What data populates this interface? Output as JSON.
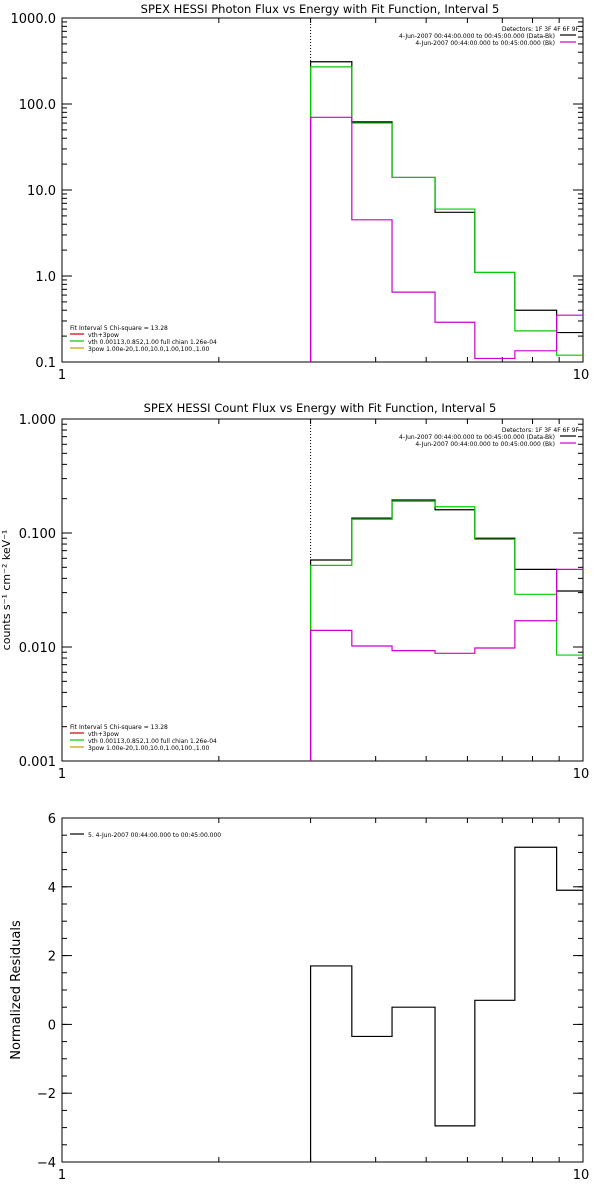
{
  "chart_data": [
    {
      "id": "photon",
      "type": "line",
      "title": "SPEX HESSI Photon Flux vs Energy with Fit Function, Interval 5",
      "xscale": "log",
      "yscale": "log",
      "xlim": [
        1,
        10
      ],
      "ylim": [
        0.1,
        1000
      ],
      "xticks": [
        {
          "v": 1,
          "label": "1"
        },
        {
          "v": 10,
          "label": "10"
        }
      ],
      "yticks": [
        {
          "v": 0.1,
          "label": "0.1"
        },
        {
          "v": 1,
          "label": "1.0"
        },
        {
          "v": 10,
          "label": "10.0"
        },
        {
          "v": 100,
          "label": "100.0"
        },
        {
          "v": 1000,
          "label": "1000.0"
        }
      ],
      "vline": 3,
      "legend_top_right": [
        {
          "text": "Detectors: 1F 3F 4F 6F 9F",
          "color": null
        },
        {
          "text": "4-Jun-2007 00:44:00.000 to 00:45:00.000 (Data-Bk)",
          "color": "#000000"
        },
        {
          "text": "4-Jun-2007 00:44:00.000 to 00:45:00.000 (Bk)",
          "color": "#cc00cc"
        }
      ],
      "legend_bottom_left": [
        {
          "text": "Fit Interval  5   Chi-square = 13.28",
          "color": null
        },
        {
          "text": "vth+3pow",
          "color": "#cc0000"
        },
        {
          "text": "vth 0.00113,0.852,1.00   full chian 1.26e-04",
          "color": "#00cc00"
        },
        {
          "text": "3pow 1.00e-20,1.00,10.0,1.00,100.,1.00",
          "color": "#cc9900"
        }
      ],
      "edges": [
        3,
        3.6,
        4.3,
        5.2,
        6.2,
        7.4,
        8.9,
        10
      ],
      "series": [
        {
          "color": "#000000",
          "values": [
            310,
            62,
            14,
            5.5,
            1.1,
            0.4,
            0.22
          ]
        },
        {
          "color": "#00cc00",
          "values": [
            270,
            60,
            14,
            6,
            1.1,
            0.23,
            0.12
          ]
        },
        {
          "color": "#cc00cc",
          "values": [
            70,
            4.5,
            0.65,
            0.29,
            0.11,
            0.135,
            0.35
          ]
        }
      ]
    },
    {
      "id": "count",
      "type": "line",
      "title": "SPEX HESSI Count Flux vs Energy with Fit Function, Interval 5",
      "ylabel": "counts s⁻¹ cm⁻² keV⁻¹",
      "xscale": "log",
      "yscale": "log",
      "xlim": [
        1,
        10
      ],
      "ylim": [
        0.001,
        1
      ],
      "xticks": [
        {
          "v": 1,
          "label": "1"
        },
        {
          "v": 10,
          "label": "10"
        }
      ],
      "yticks": [
        {
          "v": 0.001,
          "label": "0.001"
        },
        {
          "v": 0.01,
          "label": "0.010"
        },
        {
          "v": 0.1,
          "label": "0.100"
        },
        {
          "v": 1,
          "label": "1.000"
        }
      ],
      "vline": 3,
      "legend_top_right": [
        {
          "text": "Detectors: 1F 3F 4F 6F 9F",
          "color": null
        },
        {
          "text": "4-Jun-2007 00:44:00.000 to 00:45:00.000 (Data-Bk)",
          "color": "#000000"
        },
        {
          "text": "4-Jun-2007 00:44:00.000 to 00:45:00.000 (Bk)",
          "color": "#cc00cc"
        }
      ],
      "legend_bottom_left": [
        {
          "text": "Fit Interval  5   Chi-square = 13.28",
          "color": null
        },
        {
          "text": "vth+3pow",
          "color": "#cc0000"
        },
        {
          "text": "vth 0.00113,0.852,1.00   full chian 1.26e-04",
          "color": "#00cc00"
        },
        {
          "text": "3pow 1.00e-20,1.00,10.0,1.00,100.,1.00",
          "color": "#cc9900"
        }
      ],
      "edges": [
        3,
        3.6,
        4.3,
        5.2,
        6.2,
        7.4,
        8.9,
        10
      ],
      "series": [
        {
          "color": "#000000",
          "values": [
            0.058,
            0.135,
            0.195,
            0.16,
            0.09,
            0.048,
            0.031
          ]
        },
        {
          "color": "#00cc00",
          "values": [
            0.052,
            0.132,
            0.19,
            0.17,
            0.088,
            0.029,
            0.0085
          ]
        },
        {
          "color": "#cc00cc",
          "values": [
            0.014,
            0.0102,
            0.0093,
            0.0088,
            0.0098,
            0.017,
            0.048
          ]
        }
      ]
    },
    {
      "id": "resid",
      "type": "line",
      "title": "",
      "ylabel": "Normalized Residuals",
      "xscale": "log",
      "yscale": "linear",
      "xlim": [
        1,
        10
      ],
      "ylim": [
        -4,
        6
      ],
      "xticks": [
        {
          "v": 1,
          "label": "1"
        },
        {
          "v": 10,
          "label": "10"
        }
      ],
      "yticks": [
        {
          "v": -4,
          "label": "−4"
        },
        {
          "v": -2,
          "label": "−2"
        },
        {
          "v": 0,
          "label": "0"
        },
        {
          "v": 2,
          "label": "2"
        },
        {
          "v": 4,
          "label": "4"
        },
        {
          "v": 6,
          "label": "6"
        }
      ],
      "vline": null,
      "legend_top_left": [
        {
          "text": "5. 4-Jun-2007 00:44:00.000 to 00:45:00.000",
          "color": "#000000"
        }
      ],
      "edges": [
        3,
        3.6,
        4.3,
        5.2,
        6.2,
        7.4,
        8.9,
        10
      ],
      "series": [
        {
          "color": "#000000",
          "values": [
            1.7,
            -0.35,
            0.5,
            -2.95,
            0.7,
            5.15,
            3.9
          ]
        }
      ]
    }
  ]
}
